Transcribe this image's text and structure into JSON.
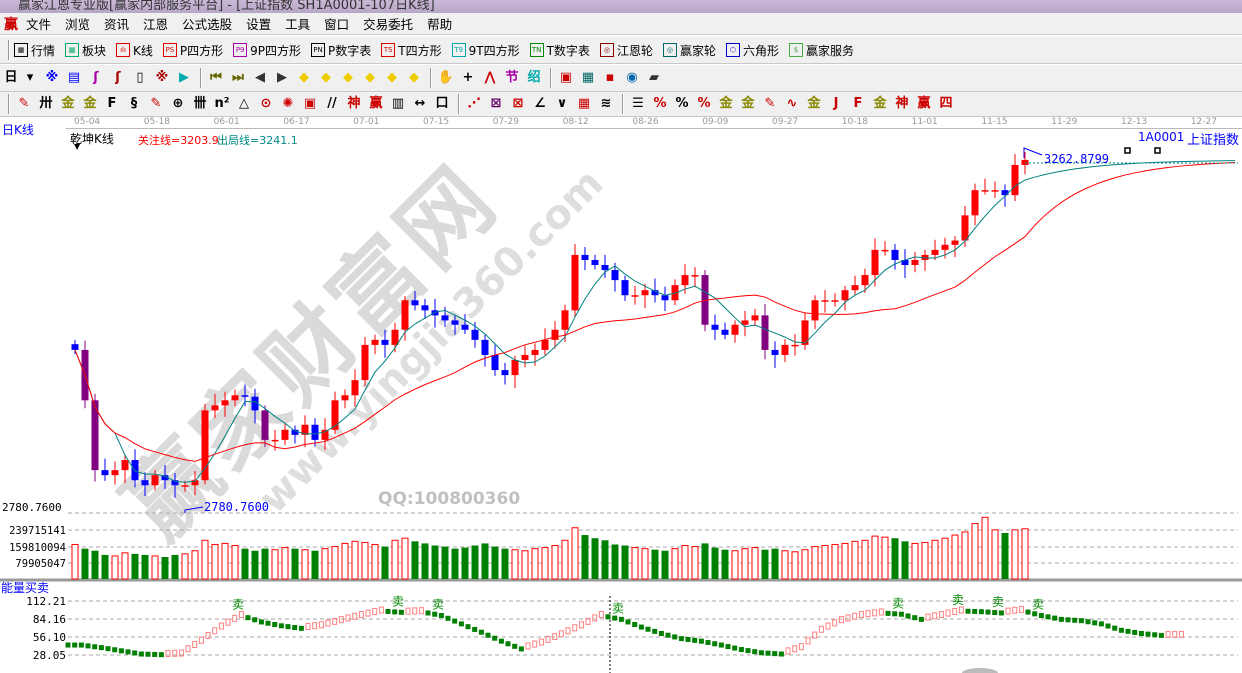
{
  "window": {
    "title": "赢家江恩专业版[赢家内部服务平台] - [上证指数 SH1A0001-107日K线]"
  },
  "menu": {
    "logo": "赢",
    "items": [
      "文件",
      "浏览",
      "资讯",
      "江恩",
      "公式选股",
      "设置",
      "工具",
      "窗口",
      "交易委托",
      "帮助"
    ]
  },
  "toolbar1": [
    {
      "label": "行情",
      "icon": "grid-table-icon",
      "tag": "▦",
      "color": "#000"
    },
    {
      "label": "板块",
      "icon": "blocks-icon",
      "tag": "▩",
      "color": "#0a6"
    },
    {
      "label": "K线",
      "icon": "candles-icon",
      "tag": "ılı",
      "color": "#d00"
    },
    {
      "label": "P四方形",
      "icon": "ps-icon",
      "tag": "PS",
      "color": "#d00"
    },
    {
      "label": "9P四方形",
      "icon": "p9-icon",
      "tag": "P9",
      "color": "#a0a"
    },
    {
      "label": "P数字表",
      "icon": "pn-icon",
      "tag": "PN",
      "color": "#000"
    },
    {
      "label": "T四方形",
      "icon": "ts-icon",
      "tag": "TS",
      "color": "#d00"
    },
    {
      "label": "9T四方形",
      "icon": "t9-icon",
      "tag": "T9",
      "color": "#0aa"
    },
    {
      "label": "T数字表",
      "icon": "tn-icon",
      "tag": "TN",
      "color": "#080"
    },
    {
      "label": "江恩轮",
      "icon": "gann-wheel-icon",
      "tag": "◎",
      "color": "#800"
    },
    {
      "label": "赢家轮",
      "icon": "winner-wheel-icon",
      "tag": "◎",
      "color": "#066"
    },
    {
      "label": "六角形",
      "icon": "hexagon-icon",
      "tag": "⬡",
      "color": "#00c"
    },
    {
      "label": "赢家服务",
      "icon": "dollar-icon",
      "tag": "$",
      "color": "#4a4"
    }
  ],
  "toolbar2": {
    "period": "日",
    "icons": [
      {
        "n": "period-select-icon",
        "g": "▾",
        "c": "#000"
      },
      {
        "n": "ratio-icon",
        "g": "※",
        "c": "#00f"
      },
      {
        "n": "notes-icon",
        "g": "▤",
        "c": "#00f"
      },
      {
        "n": "wave3-icon",
        "g": "ʃ",
        "c": "#a0a"
      },
      {
        "n": "wave9-icon",
        "g": "ʃ",
        "c": "#a00"
      },
      {
        "n": "candle-type-icon",
        "g": "▯",
        "c": "#000"
      },
      {
        "n": "formula-icon",
        "g": "※",
        "c": "#a00"
      },
      {
        "n": "flag-icon",
        "g": "▶",
        "c": "#0aa"
      },
      {
        "n": "first-icon",
        "g": "⏮",
        "c": "#660"
      },
      {
        "n": "last-icon",
        "g": "⏭",
        "c": "#660"
      },
      {
        "n": "prev-icon",
        "g": "◀",
        "c": "#333"
      },
      {
        "n": "next-icon",
        "g": "▶",
        "c": "#333"
      },
      {
        "n": "left-diamond-icon",
        "g": "◆",
        "c": "#ec0"
      },
      {
        "n": "right-diamond-icon",
        "g": "◆",
        "c": "#ec0"
      },
      {
        "n": "expand-diamond-icon",
        "g": "◆",
        "c": "#ec0"
      },
      {
        "n": "shrink-diamond-icon",
        "g": "◆",
        "c": "#ec0"
      },
      {
        "n": "zoom-in-diamond-icon",
        "g": "◆",
        "c": "#ec0"
      },
      {
        "n": "zoom-out-diamond-icon",
        "g": "◆",
        "c": "#ec0"
      },
      {
        "n": "hand-icon",
        "g": "✋",
        "c": "#000"
      },
      {
        "n": "crosshair-icon",
        "g": "+",
        "c": "#000"
      },
      {
        "n": "line-tool-icon",
        "g": "⋀",
        "c": "#c00"
      },
      {
        "n": "pattern-icon",
        "g": "节",
        "c": "#a0a"
      },
      {
        "n": "cycle-icon",
        "g": "绍",
        "c": "#0aa"
      },
      {
        "n": "calendar-icon",
        "g": "▣",
        "c": "#c00"
      },
      {
        "n": "calculator-icon",
        "g": "▦",
        "c": "#066"
      },
      {
        "n": "save-icon",
        "g": "▪",
        "c": "#c00"
      },
      {
        "n": "network-icon",
        "g": "◉",
        "c": "#06a"
      },
      {
        "n": "printer-icon",
        "g": "▰",
        "c": "#333"
      }
    ]
  },
  "toolbar3": {
    "icons": [
      {
        "n": "pen-icon",
        "g": "✎",
        "c": "#c00"
      },
      {
        "n": "parallel-lines-icon",
        "g": "卅",
        "c": "#000"
      },
      {
        "n": "gold-lines-icon",
        "g": "金",
        "c": "#880"
      },
      {
        "n": "gold-lines2-icon",
        "g": "金",
        "c": "#880"
      },
      {
        "n": "fib-icon",
        "g": "F",
        "c": "#000"
      },
      {
        "n": "spiral-icon",
        "g": "§",
        "c": "#000"
      },
      {
        "n": "ruler-pen-icon",
        "g": "✎",
        "c": "#c00"
      },
      {
        "n": "circle-grid-icon",
        "g": "⊕",
        "c": "#000"
      },
      {
        "n": "bars-icon",
        "g": "卌",
        "c": "#000"
      },
      {
        "n": "n2-icon",
        "g": "n²",
        "c": "#000"
      },
      {
        "n": "triangle-icon",
        "g": "△",
        "c": "#000"
      },
      {
        "n": "gann-circle-icon",
        "g": "⊙",
        "c": "#c00"
      },
      {
        "n": "star-icon",
        "g": "✺",
        "c": "#c00"
      },
      {
        "n": "square-icon",
        "g": "▣",
        "c": "#c00"
      },
      {
        "n": "angle-icon",
        "g": "//",
        "c": "#000"
      },
      {
        "n": "shen-icon",
        "g": "神",
        "c": "#c00"
      },
      {
        "n": "ying-icon",
        "g": "赢",
        "c": "#c00"
      },
      {
        "n": "ruler-icon",
        "g": "▥",
        "c": "#000"
      },
      {
        "n": "span-icon",
        "g": "↔",
        "c": "#000"
      },
      {
        "n": "box-icon",
        "g": "口",
        "c": "#000"
      },
      {
        "n": "fan-icon",
        "g": "⋰",
        "c": "#c00"
      },
      {
        "n": "gann-box-icon",
        "g": "⊠",
        "c": "#606"
      },
      {
        "n": "gann-fan-icon",
        "g": "⊠",
        "c": "#c00"
      },
      {
        "n": "angle-fan-icon",
        "g": "∠",
        "c": "#000"
      },
      {
        "n": "wave-icon",
        "g": "∨",
        "c": "#000"
      },
      {
        "n": "grid-icon",
        "g": "▦",
        "c": "#c00"
      },
      {
        "n": "channel-icon",
        "g": "≋",
        "c": "#000"
      },
      {
        "n": "list-icon",
        "g": "☰",
        "c": "#000"
      },
      {
        "n": "percent-line-icon",
        "g": "%",
        "c": "#c00"
      },
      {
        "n": "percent-icon",
        "g": "%",
        "c": "#000"
      },
      {
        "n": "percent-lines-icon",
        "g": "%",
        "c": "#c00"
      },
      {
        "n": "gold-circle-icon",
        "g": "金",
        "c": "#880"
      },
      {
        "n": "gold-bars-icon",
        "g": "金",
        "c": "#880"
      },
      {
        "n": "brush-icon",
        "g": "✎",
        "c": "#c00"
      },
      {
        "n": "sine-icon",
        "g": "∿",
        "c": "#c00"
      },
      {
        "n": "gold-box-icon",
        "g": "金",
        "c": "#880"
      },
      {
        "n": "j-angle-icon",
        "g": "J",
        "c": "#c00"
      },
      {
        "n": "f-angle-icon",
        "g": "F",
        "c": "#c00"
      },
      {
        "n": "gold-angle-icon",
        "g": "金",
        "c": "#880"
      },
      {
        "n": "shen-angle-icon",
        "g": "神",
        "c": "#c00"
      },
      {
        "n": "ying-angle-icon",
        "g": "赢",
        "c": "#c00"
      },
      {
        "n": "four-angle-icon",
        "g": "四",
        "c": "#c00"
      }
    ]
  },
  "dates": [
    "05-04",
    "05-18",
    "06-01",
    "06-17",
    "07-01",
    "07-15",
    "07-29",
    "08-12",
    "08-26",
    "09-09",
    "09-27",
    "10-18",
    "11-01",
    "11-15",
    "11-29",
    "12-13",
    "12-27"
  ],
  "chart_header": {
    "period": "日K线",
    "indicator": "乾坤K线",
    "focus_line": "关注线=3203.9",
    "exit_line": "出局线=3241.1",
    "code": "1A0001",
    "name": "上证指数"
  },
  "watermark": {
    "brand": "赢家财富网",
    "url": "www.yingjia360.com",
    "qq": "QQ:100800360"
  },
  "colors": {
    "up": "#ff0000",
    "down": "#0000ff",
    "big_down": "#800080",
    "ma_short": "#008080",
    "ma_long": "#ff0000",
    "vol_down": "#008000",
    "energy_up": "#ff8080",
    "energy_down": "#008000",
    "label": "#0000ff"
  },
  "chart_data": [
    {
      "type": "candlestick",
      "price_low_label": "2780.7600",
      "price_high_label": "3262.8799",
      "ylim": [
        2780.76,
        3262.88
      ],
      "close": [
        2999,
        2929,
        2832,
        2825,
        2832,
        2846,
        2818,
        2811,
        2825,
        2818,
        2811,
        2811,
        2818,
        2915,
        2922,
        2929,
        2936,
        2934,
        2915,
        2874,
        2874,
        2888,
        2881,
        2895,
        2874,
        2888,
        2929,
        2936,
        2957,
        3006,
        3013,
        3006,
        3027,
        3068,
        3061,
        3054,
        3047,
        3040,
        3034,
        3027,
        3013,
        2992,
        2971,
        2964,
        2985,
        2992,
        2999,
        3013,
        3027,
        3054,
        3131,
        3124,
        3117,
        3110,
        3096,
        3075,
        3075,
        3082,
        3075,
        3068,
        3089,
        3103,
        3103,
        3034,
        3027,
        3020,
        3034,
        3040,
        3047,
        2999,
        2992,
        3006,
        3006,
        3040,
        3068,
        3068,
        3068,
        3082,
        3089,
        3103,
        3138,
        3138,
        3124,
        3117,
        3124,
        3131,
        3138,
        3145,
        3151,
        3186,
        3221,
        3221,
        3221,
        3214,
        3256,
        3263
      ]
    },
    {
      "type": "bar",
      "name": "volume",
      "axis_labels": [
        "239715141",
        "159810094",
        "79905047"
      ],
      "axis_values": [
        239715141,
        159810094,
        79905047
      ],
      "values_millions": [
        170,
        150,
        140,
        120,
        115,
        130,
        125,
        120,
        115,
        110,
        120,
        125,
        140,
        190,
        170,
        175,
        165,
        150,
        140,
        150,
        145,
        155,
        150,
        145,
        140,
        150,
        160,
        175,
        185,
        180,
        170,
        160,
        190,
        200,
        185,
        175,
        165,
        160,
        150,
        155,
        165,
        175,
        160,
        150,
        145,
        140,
        150,
        155,
        165,
        190,
        250,
        215,
        200,
        190,
        170,
        165,
        155,
        150,
        145,
        140,
        150,
        165,
        160,
        175,
        155,
        145,
        140,
        150,
        155,
        145,
        150,
        140,
        135,
        145,
        160,
        165,
        170,
        175,
        185,
        190,
        210,
        205,
        200,
        185,
        175,
        180,
        190,
        200,
        215,
        230,
        270,
        300,
        240,
        225,
        240,
        245
      ]
    },
    {
      "type": "bar",
      "name": "能量买卖",
      "axis_labels": [
        "112.21",
        "84.16",
        "56.10",
        "28.05"
      ],
      "ylim": [
        28.05,
        112.21
      ],
      "values": [
        42,
        38,
        33,
        28,
        27,
        28,
        48,
        70,
        88,
        78,
        72,
        68,
        72,
        80,
        88,
        95,
        93,
        94,
        88,
        75,
        62,
        48,
        36,
        45,
        58,
        72,
        88,
        82,
        70,
        60,
        52,
        48,
        42,
        35,
        30,
        28,
        38,
        65,
        80,
        88,
        92,
        90,
        82,
        88,
        95,
        94,
        92,
        96,
        88,
        82,
        80,
        75,
        65,
        60,
        57,
        57
      ],
      "sell_signal_label": "卖",
      "sell_signals": [
        8,
        16,
        18,
        27,
        41,
        44,
        46,
        48
      ]
    }
  ]
}
